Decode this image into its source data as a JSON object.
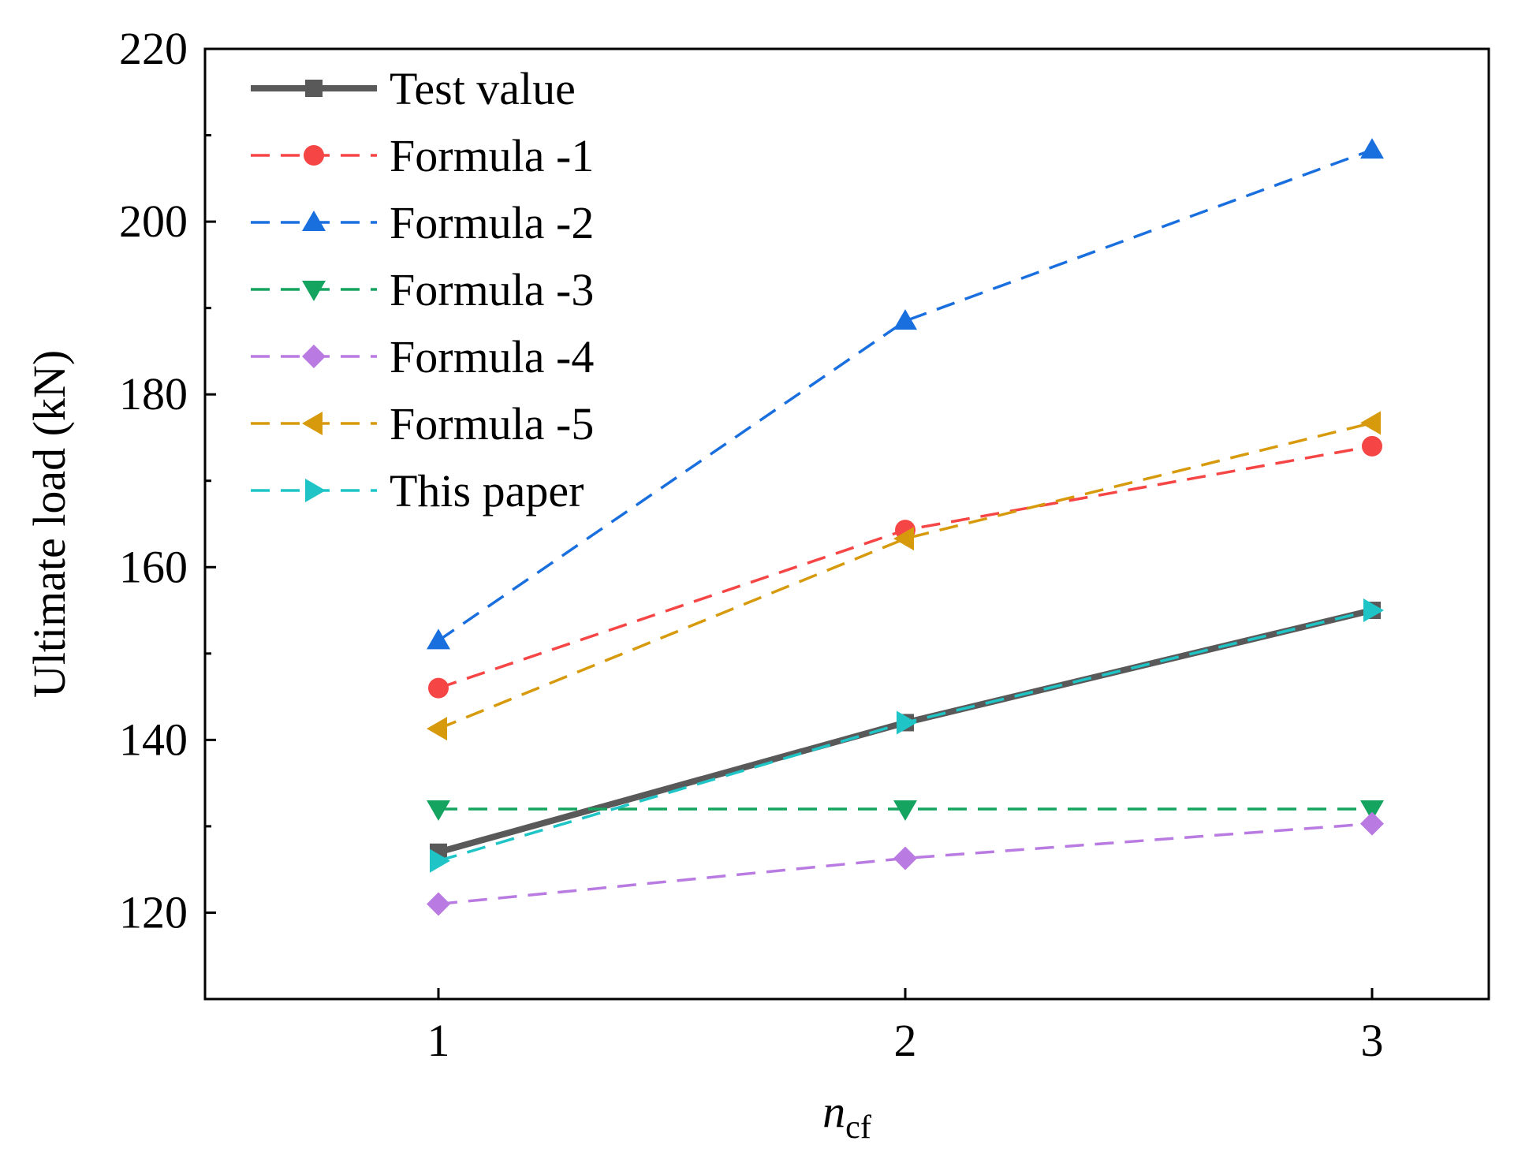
{
  "chart_data": {
    "type": "line",
    "title": "",
    "xlabel": "n",
    "xlabel_subscript": "cf",
    "ylabel": "Ultimate load (kN)",
    "x": [
      1,
      2,
      3
    ],
    "x_ticks": [
      "1",
      "2",
      "3"
    ],
    "xlim": [
      0.5,
      3.25
    ],
    "ylim": [
      110,
      220
    ],
    "y_ticks": [
      "120",
      "140",
      "160",
      "180",
      "200",
      "220"
    ],
    "y_tick_values": [
      120,
      140,
      160,
      180,
      200,
      220
    ],
    "legend_position": "top-left",
    "series": [
      {
        "name": "Test value",
        "values": [
          127,
          142,
          155
        ],
        "color": "#595959",
        "style": "solid",
        "marker": "square"
      },
      {
        "name": "Formula -1",
        "values": [
          146,
          164.3,
          174
        ],
        "color": "#f54545",
        "style": "dashed",
        "marker": "circle"
      },
      {
        "name": "Formula -2",
        "values": [
          151.5,
          188.5,
          208.3
        ],
        "color": "#1a6fdf",
        "style": "dashed",
        "marker": "triangle-up"
      },
      {
        "name": "Formula -3",
        "values": [
          132,
          132,
          132
        ],
        "color": "#14a45f",
        "style": "dashed",
        "marker": "triangle-down"
      },
      {
        "name": "Formula -4",
        "values": [
          121,
          126.3,
          130.3
        ],
        "color": "#b97be1",
        "style": "dashed",
        "marker": "diamond"
      },
      {
        "name": "Formula -5",
        "values": [
          141.3,
          163.3,
          176.7
        ],
        "color": "#d79a0c",
        "style": "dashed",
        "marker": "triangle-left"
      },
      {
        "name": "This paper",
        "values": [
          126,
          142,
          155
        ],
        "color": "#1fc5c6",
        "style": "dashed",
        "marker": "triangle-right"
      }
    ]
  }
}
